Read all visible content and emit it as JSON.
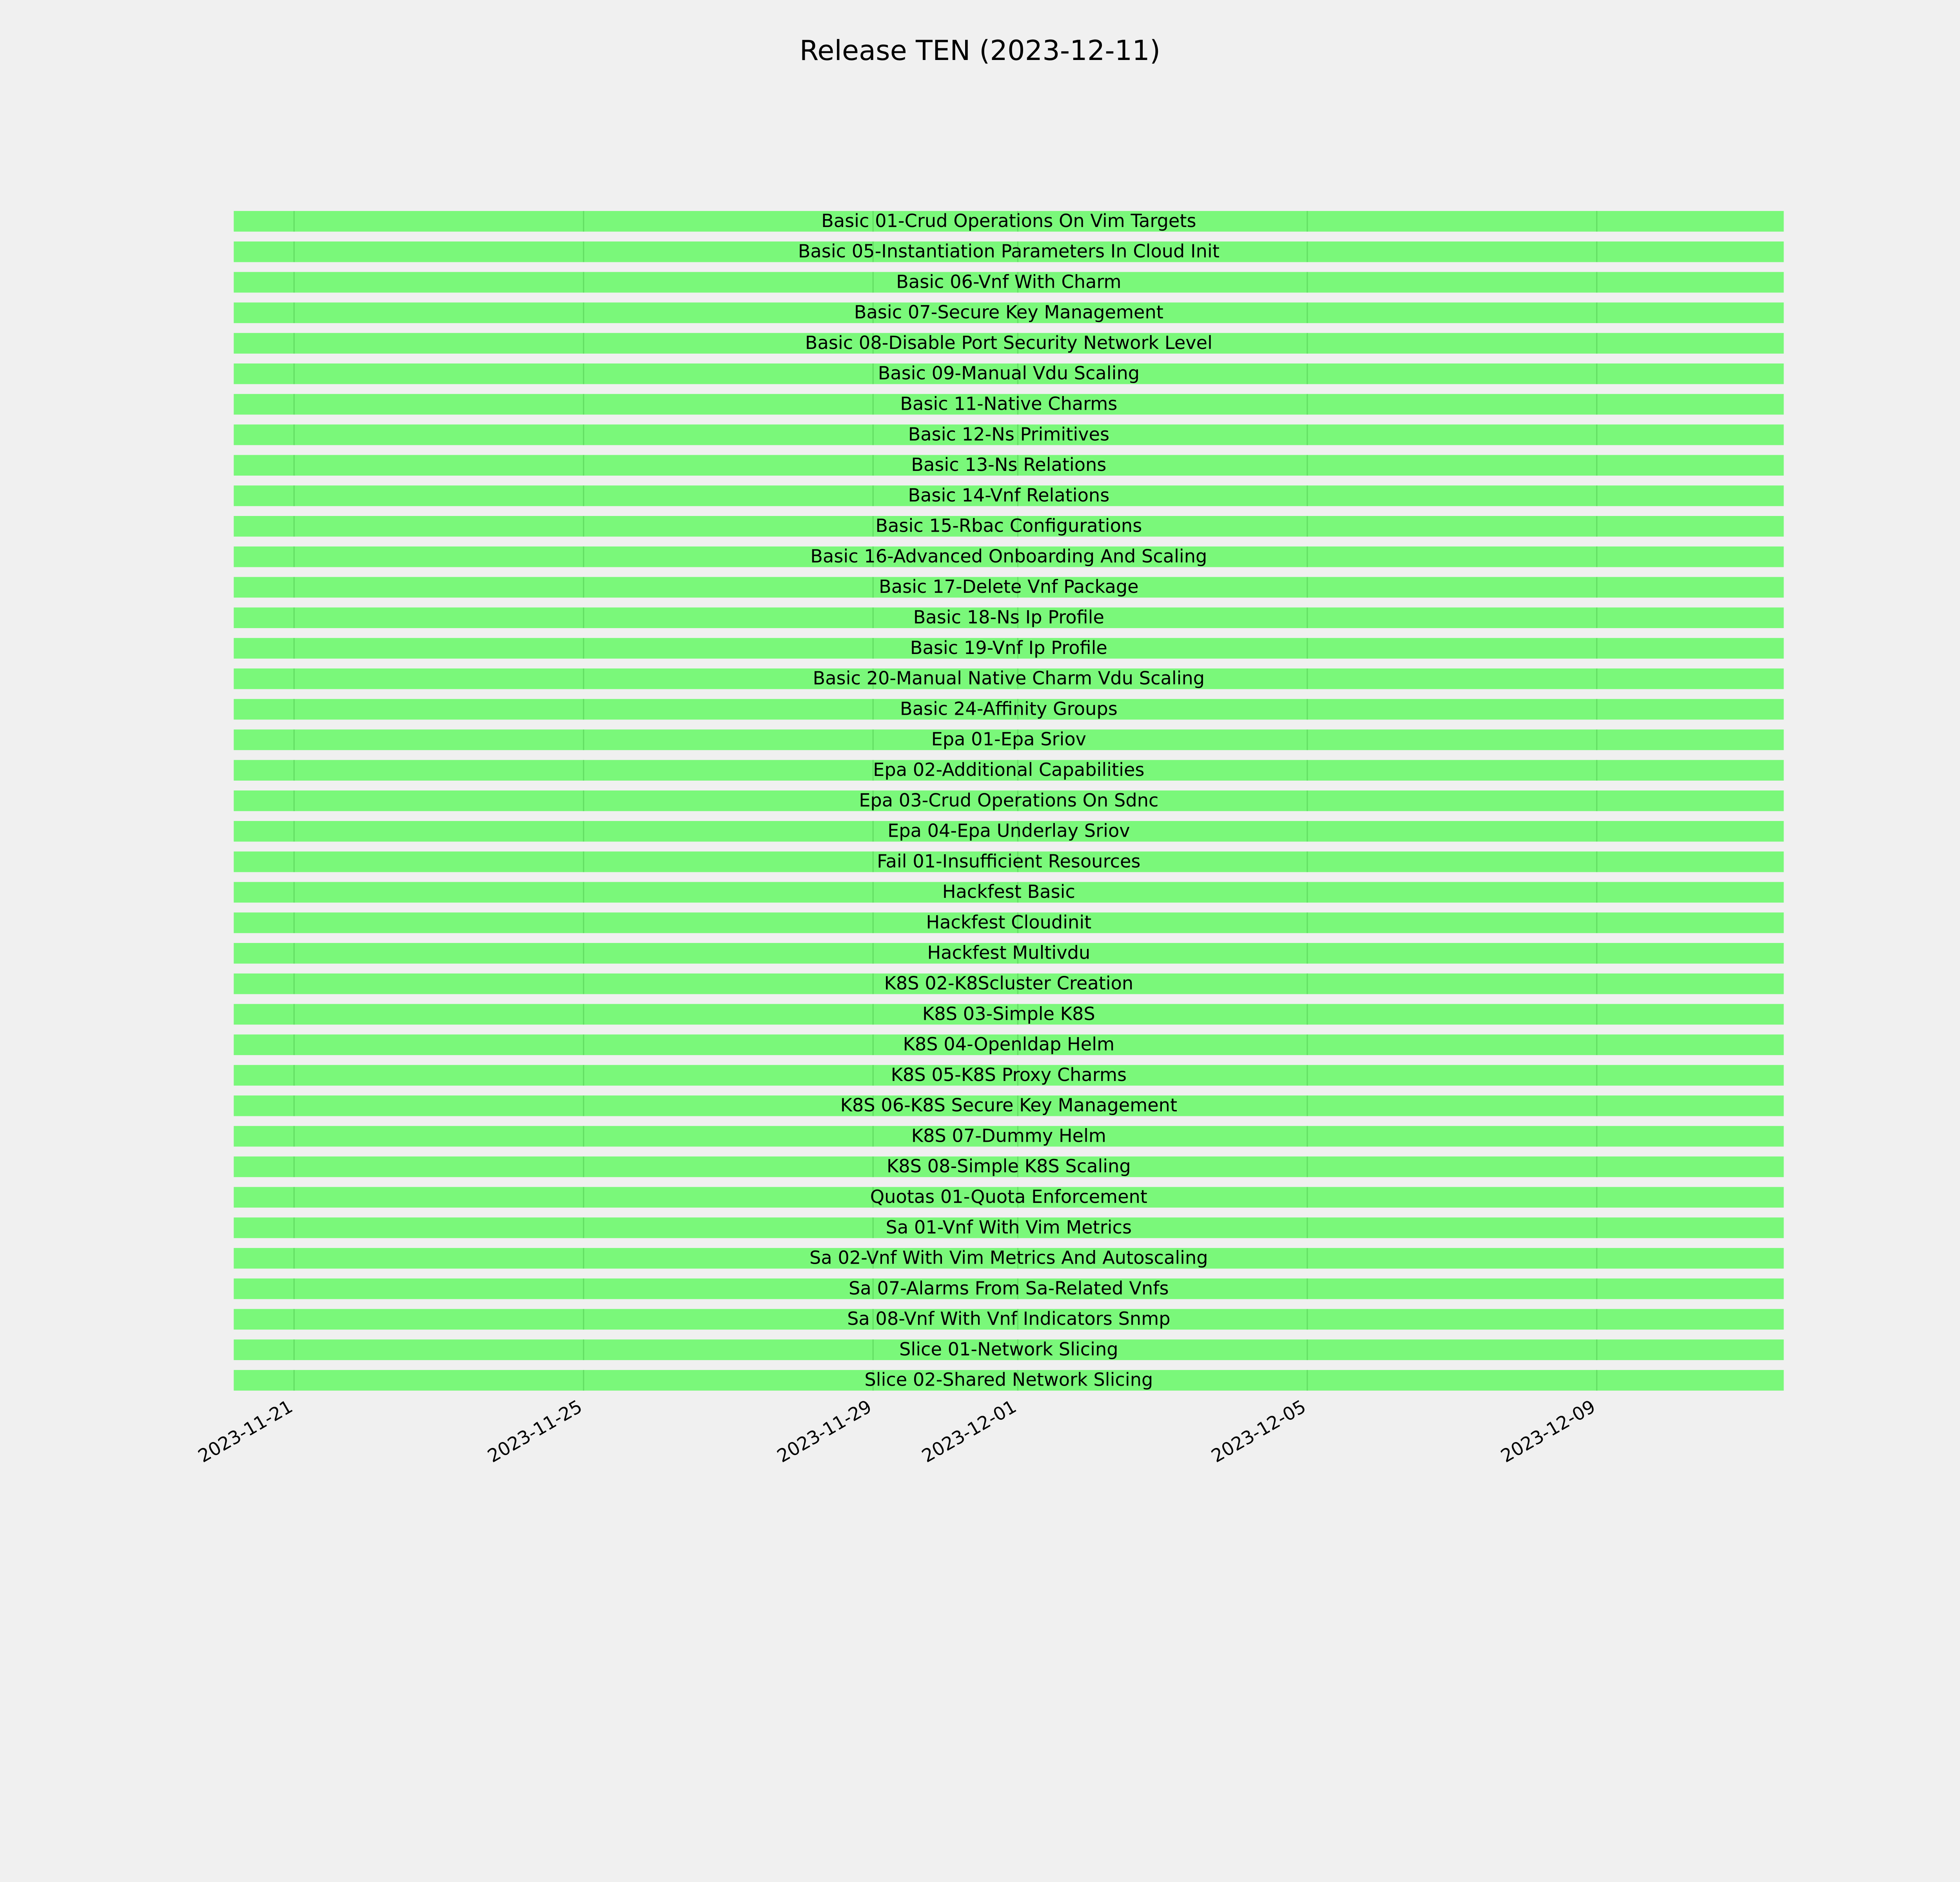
{
  "chart_data": {
    "type": "bar",
    "orientation": "horizontal-gantt",
    "title": "Release TEN (2023-12-11)",
    "xlabel": "",
    "ylabel": "",
    "xlim": [
      "2023-11-20T04:00",
      "2023-12-11T14:00"
    ],
    "x_ticks": [
      "2023-11-21",
      "2023-11-25",
      "2023-11-29",
      "2023-12-01",
      "2023-12-05",
      "2023-12-09"
    ],
    "grid": "vertical on",
    "colors": {
      "background": "#f0f0f0",
      "bar": "#7af87a",
      "grid": "#5fd85f",
      "text": "#000000"
    },
    "tasks": [
      {
        "label": "Basic 01-Crud Operations On Vim Targets",
        "start": "2023-11-20T04:00",
        "end": "2023-12-11T14:00"
      },
      {
        "label": "Basic 05-Instantiation Parameters In Cloud Init",
        "start": "2023-11-20T04:00",
        "end": "2023-12-11T14:00"
      },
      {
        "label": "Basic 06-Vnf With Charm",
        "start": "2023-11-20T04:00",
        "end": "2023-12-11T14:00"
      },
      {
        "label": "Basic 07-Secure Key Management",
        "start": "2023-11-20T04:00",
        "end": "2023-12-11T14:00"
      },
      {
        "label": "Basic 08-Disable Port Security Network Level",
        "start": "2023-11-20T04:00",
        "end": "2023-12-11T14:00"
      },
      {
        "label": "Basic 09-Manual Vdu Scaling",
        "start": "2023-11-20T04:00",
        "end": "2023-12-11T14:00"
      },
      {
        "label": "Basic 11-Native Charms",
        "start": "2023-11-20T04:00",
        "end": "2023-12-11T14:00"
      },
      {
        "label": "Basic 12-Ns Primitives",
        "start": "2023-11-20T04:00",
        "end": "2023-12-11T14:00"
      },
      {
        "label": "Basic 13-Ns Relations",
        "start": "2023-11-20T04:00",
        "end": "2023-12-11T14:00"
      },
      {
        "label": "Basic 14-Vnf Relations",
        "start": "2023-11-20T04:00",
        "end": "2023-12-11T14:00"
      },
      {
        "label": "Basic 15-Rbac Configurations",
        "start": "2023-11-20T04:00",
        "end": "2023-12-11T14:00"
      },
      {
        "label": "Basic 16-Advanced Onboarding And Scaling",
        "start": "2023-11-20T04:00",
        "end": "2023-12-11T14:00"
      },
      {
        "label": "Basic 17-Delete Vnf Package",
        "start": "2023-11-20T04:00",
        "end": "2023-12-11T14:00"
      },
      {
        "label": "Basic 18-Ns Ip Profile",
        "start": "2023-11-20T04:00",
        "end": "2023-12-11T14:00"
      },
      {
        "label": "Basic 19-Vnf Ip Profile",
        "start": "2023-11-20T04:00",
        "end": "2023-12-11T14:00"
      },
      {
        "label": "Basic 20-Manual Native Charm Vdu Scaling",
        "start": "2023-11-20T04:00",
        "end": "2023-12-11T14:00"
      },
      {
        "label": "Basic 24-Affinity Groups",
        "start": "2023-11-20T04:00",
        "end": "2023-12-11T14:00"
      },
      {
        "label": "Epa 01-Epa Sriov",
        "start": "2023-11-20T04:00",
        "end": "2023-12-11T14:00"
      },
      {
        "label": "Epa 02-Additional Capabilities",
        "start": "2023-11-20T04:00",
        "end": "2023-12-11T14:00"
      },
      {
        "label": "Epa 03-Crud Operations On Sdnc",
        "start": "2023-11-20T04:00",
        "end": "2023-12-11T14:00"
      },
      {
        "label": "Epa 04-Epa Underlay Sriov",
        "start": "2023-11-20T04:00",
        "end": "2023-12-11T14:00"
      },
      {
        "label": "Fail 01-Insufficient Resources",
        "start": "2023-11-20T04:00",
        "end": "2023-12-11T14:00"
      },
      {
        "label": "Hackfest Basic",
        "start": "2023-11-20T04:00",
        "end": "2023-12-11T14:00"
      },
      {
        "label": "Hackfest Cloudinit",
        "start": "2023-11-20T04:00",
        "end": "2023-12-11T14:00"
      },
      {
        "label": "Hackfest Multivdu",
        "start": "2023-11-20T04:00",
        "end": "2023-12-11T14:00"
      },
      {
        "label": "K8S 02-K8Scluster Creation",
        "start": "2023-11-20T04:00",
        "end": "2023-12-11T14:00"
      },
      {
        "label": "K8S 03-Simple K8S",
        "start": "2023-11-20T04:00",
        "end": "2023-12-11T14:00"
      },
      {
        "label": "K8S 04-Openldap Helm",
        "start": "2023-11-20T04:00",
        "end": "2023-12-11T14:00"
      },
      {
        "label": "K8S 05-K8S Proxy Charms",
        "start": "2023-11-20T04:00",
        "end": "2023-12-11T14:00"
      },
      {
        "label": "K8S 06-K8S Secure Key Management",
        "start": "2023-11-20T04:00",
        "end": "2023-12-11T14:00"
      },
      {
        "label": "K8S 07-Dummy Helm",
        "start": "2023-11-20T04:00",
        "end": "2023-12-11T14:00"
      },
      {
        "label": "K8S 08-Simple K8S Scaling",
        "start": "2023-11-20T04:00",
        "end": "2023-12-11T14:00"
      },
      {
        "label": "Quotas 01-Quota Enforcement",
        "start": "2023-11-20T04:00",
        "end": "2023-12-11T14:00"
      },
      {
        "label": "Sa 01-Vnf With Vim Metrics",
        "start": "2023-11-20T04:00",
        "end": "2023-12-11T14:00"
      },
      {
        "label": "Sa 02-Vnf With Vim Metrics And Autoscaling",
        "start": "2023-11-20T04:00",
        "end": "2023-12-11T14:00"
      },
      {
        "label": "Sa 07-Alarms From Sa-Related Vnfs",
        "start": "2023-11-20T04:00",
        "end": "2023-12-11T14:00"
      },
      {
        "label": "Sa 08-Vnf With Vnf Indicators Snmp",
        "start": "2023-11-20T04:00",
        "end": "2023-12-11T14:00"
      },
      {
        "label": "Slice 01-Network Slicing",
        "start": "2023-11-20T04:00",
        "end": "2023-12-11T14:00"
      },
      {
        "label": "Slice 02-Shared Network Slicing",
        "start": "2023-11-20T04:00",
        "end": "2023-12-11T14:00"
      }
    ]
  }
}
